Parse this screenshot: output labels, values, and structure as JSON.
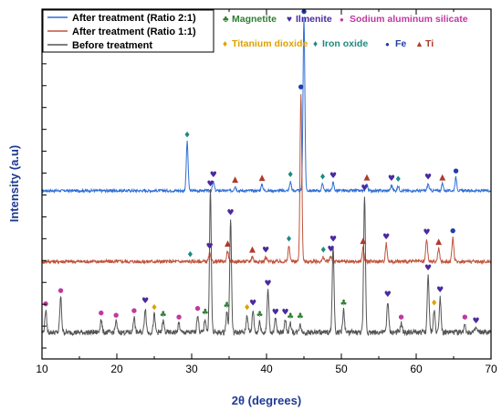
{
  "chart_data": {
    "type": "line",
    "title": "",
    "xlabel": "2θ (degrees)",
    "ylabel": "Intensity (a.u)",
    "xlim": [
      10,
      70
    ],
    "x_ticks": [
      10,
      20,
      30,
      40,
      50,
      60,
      70
    ],
    "y_tick_labels": "none",
    "series": [
      {
        "name": "After treatment (Ratio 2:1)",
        "color": "#2f6fd6",
        "baseline": 3.2,
        "noise": 0.03,
        "peaks": [
          {
            "x": 29.4,
            "h": 1.1
          },
          {
            "x": 32.9,
            "h": 0.2
          },
          {
            "x": 35.8,
            "h": 0.1
          },
          {
            "x": 39.4,
            "h": 0.14
          },
          {
            "x": 43.2,
            "h": 0.2
          },
          {
            "x": 45.0,
            "h": 3.9
          },
          {
            "x": 47.5,
            "h": 0.15
          },
          {
            "x": 48.9,
            "h": 0.18
          },
          {
            "x": 53.4,
            "h": 0.15
          },
          {
            "x": 56.7,
            "h": 0.12
          },
          {
            "x": 57.6,
            "h": 0.1
          },
          {
            "x": 61.6,
            "h": 0.15
          },
          {
            "x": 63.5,
            "h": 0.15
          },
          {
            "x": 65.3,
            "h": 0.3
          }
        ]
      },
      {
        "name": "After treatment (Ratio 1:1)",
        "color": "#c0543c",
        "baseline": 1.6,
        "noise": 0.04,
        "peaks": [
          {
            "x": 32.4,
            "h": 0.18
          },
          {
            "x": 34.8,
            "h": 0.25
          },
          {
            "x": 38.1,
            "h": 0.12
          },
          {
            "x": 39.9,
            "h": 0.1
          },
          {
            "x": 43.0,
            "h": 0.35
          },
          {
            "x": 44.6,
            "h": 3.8
          },
          {
            "x": 47.6,
            "h": 0.1
          },
          {
            "x": 48.6,
            "h": 0.12
          },
          {
            "x": 52.9,
            "h": 0.32
          },
          {
            "x": 56.0,
            "h": 0.4
          },
          {
            "x": 61.4,
            "h": 0.5
          },
          {
            "x": 63.0,
            "h": 0.3
          },
          {
            "x": 64.9,
            "h": 0.55
          }
        ]
      },
      {
        "name": "Before treatment",
        "color": "#555555",
        "baseline": 0.0,
        "noise": 0.06,
        "peaks": [
          {
            "x": 10.5,
            "h": 0.5
          },
          {
            "x": 12.5,
            "h": 0.8
          },
          {
            "x": 17.9,
            "h": 0.3
          },
          {
            "x": 19.9,
            "h": 0.25
          },
          {
            "x": 22.3,
            "h": 0.35
          },
          {
            "x": 23.8,
            "h": 0.55
          },
          {
            "x": 25.0,
            "h": 0.4
          },
          {
            "x": 26.2,
            "h": 0.25
          },
          {
            "x": 28.3,
            "h": 0.2
          },
          {
            "x": 30.8,
            "h": 0.4
          },
          {
            "x": 31.8,
            "h": 0.3
          },
          {
            "x": 32.5,
            "h": 3.2
          },
          {
            "x": 34.7,
            "h": 0.45
          },
          {
            "x": 35.2,
            "h": 2.55
          },
          {
            "x": 37.4,
            "h": 0.4
          },
          {
            "x": 38.2,
            "h": 0.5
          },
          {
            "x": 39.1,
            "h": 0.25
          },
          {
            "x": 40.2,
            "h": 0.95
          },
          {
            "x": 41.2,
            "h": 0.3
          },
          {
            "x": 42.5,
            "h": 0.3
          },
          {
            "x": 43.2,
            "h": 0.2
          },
          {
            "x": 44.5,
            "h": 0.2
          },
          {
            "x": 48.9,
            "h": 1.95
          },
          {
            "x": 50.3,
            "h": 0.5
          },
          {
            "x": 53.1,
            "h": 3.1
          },
          {
            "x": 56.2,
            "h": 0.7
          },
          {
            "x": 58.0,
            "h": 0.2
          },
          {
            "x": 61.6,
            "h": 1.3
          },
          {
            "x": 62.4,
            "h": 0.5
          },
          {
            "x": 63.2,
            "h": 0.8
          },
          {
            "x": 66.5,
            "h": 0.2
          },
          {
            "x": 68.0,
            "h": 0.1
          }
        ]
      }
    ],
    "legend": {
      "placement": "top-left",
      "entries": [
        {
          "label": "After treatment (Ratio 2:1)",
          "color": "#2f6fd6"
        },
        {
          "label": "After treatment (Ratio 1:1)",
          "color": "#c0543c"
        },
        {
          "label": "Before treatment",
          "color": "#555555"
        }
      ]
    },
    "phase_legend": [
      {
        "label": "Magnetite",
        "symbol": "♣",
        "color": "#2e7d32"
      },
      {
        "label": "Ilmenite",
        "symbol": "♥",
        "color": "#4b2a9e"
      },
      {
        "label": "Sodium aluminum silicate",
        "symbol": "●",
        "color": "#c0399f"
      },
      {
        "label": "Titanium dioxide",
        "symbol": "♦",
        "color": "#e0a000"
      },
      {
        "label": "Iron oxide",
        "symbol": "♦",
        "color": "#1d8a80"
      },
      {
        "label": "Fe",
        "symbol": "●",
        "color": "#1f3ea8"
      },
      {
        "label": "Ti",
        "symbol": "▲",
        "color": "#b03a2a"
      }
    ],
    "phase_markers": [
      {
        "series": 0,
        "x": 29.4,
        "phase": "Iron oxide"
      },
      {
        "series": 0,
        "x": 32.9,
        "phase": "Ilmenite"
      },
      {
        "series": 0,
        "x": 35.8,
        "phase": "Ti"
      },
      {
        "series": 0,
        "x": 39.4,
        "phase": "Ti"
      },
      {
        "series": 0,
        "x": 43.2,
        "phase": "Iron oxide"
      },
      {
        "series": 0,
        "x": 45.0,
        "phase": "Fe"
      },
      {
        "series": 0,
        "x": 47.5,
        "phase": "Iron oxide"
      },
      {
        "series": 0,
        "x": 48.9,
        "phase": "Ilmenite"
      },
      {
        "series": 0,
        "x": 53.4,
        "phase": "Ti"
      },
      {
        "series": 0,
        "x": 56.7,
        "phase": "Ilmenite"
      },
      {
        "series": 0,
        "x": 57.6,
        "phase": "Iron oxide"
      },
      {
        "series": 0,
        "x": 61.6,
        "phase": "Ilmenite"
      },
      {
        "series": 0,
        "x": 63.5,
        "phase": "Ti"
      },
      {
        "series": 0,
        "x": 65.3,
        "phase": "Fe"
      },
      {
        "series": 1,
        "x": 29.8,
        "phase": "Iron oxide"
      },
      {
        "series": 1,
        "x": 32.4,
        "phase": "Ilmenite"
      },
      {
        "series": 1,
        "x": 34.8,
        "phase": "Ti"
      },
      {
        "series": 1,
        "x": 38.1,
        "phase": "Ti"
      },
      {
        "series": 1,
        "x": 39.9,
        "phase": "Ilmenite"
      },
      {
        "series": 1,
        "x": 43.0,
        "phase": "Iron oxide"
      },
      {
        "series": 1,
        "x": 44.6,
        "phase": "Fe"
      },
      {
        "series": 1,
        "x": 47.6,
        "phase": "Iron oxide"
      },
      {
        "series": 1,
        "x": 48.6,
        "phase": "Ilmenite"
      },
      {
        "series": 1,
        "x": 52.9,
        "phase": "Ti"
      },
      {
        "series": 1,
        "x": 56.0,
        "phase": "Ilmenite"
      },
      {
        "series": 1,
        "x": 61.4,
        "phase": "Ilmenite"
      },
      {
        "series": 1,
        "x": 63.0,
        "phase": "Ti"
      },
      {
        "series": 1,
        "x": 64.9,
        "phase": "Fe"
      },
      {
        "series": 2,
        "x": 10.5,
        "phase": "Sodium aluminum silicate"
      },
      {
        "series": 2,
        "x": 12.5,
        "phase": "Sodium aluminum silicate"
      },
      {
        "series": 2,
        "x": 17.9,
        "phase": "Sodium aluminum silicate"
      },
      {
        "series": 2,
        "x": 19.9,
        "phase": "Sodium aluminum silicate"
      },
      {
        "series": 2,
        "x": 22.3,
        "phase": "Sodium aluminum silicate"
      },
      {
        "series": 2,
        "x": 23.8,
        "phase": "Ilmenite"
      },
      {
        "series": 2,
        "x": 25.0,
        "phase": "Titanium dioxide"
      },
      {
        "series": 2,
        "x": 26.2,
        "phase": "Magnetite"
      },
      {
        "series": 2,
        "x": 28.3,
        "phase": "Sodium aluminum silicate"
      },
      {
        "series": 2,
        "x": 30.8,
        "phase": "Sodium aluminum silicate"
      },
      {
        "series": 2,
        "x": 31.8,
        "phase": "Magnetite"
      },
      {
        "series": 2,
        "x": 32.5,
        "phase": "Ilmenite"
      },
      {
        "series": 2,
        "x": 34.7,
        "phase": "Magnetite"
      },
      {
        "series": 2,
        "x": 35.2,
        "phase": "Ilmenite"
      },
      {
        "series": 2,
        "x": 37.4,
        "phase": "Titanium dioxide"
      },
      {
        "series": 2,
        "x": 38.2,
        "phase": "Ilmenite"
      },
      {
        "series": 2,
        "x": 39.1,
        "phase": "Magnetite"
      },
      {
        "series": 2,
        "x": 40.2,
        "phase": "Ilmenite"
      },
      {
        "series": 2,
        "x": 41.2,
        "phase": "Ilmenite"
      },
      {
        "series": 2,
        "x": 42.5,
        "phase": "Ilmenite"
      },
      {
        "series": 2,
        "x": 43.2,
        "phase": "Magnetite"
      },
      {
        "series": 2,
        "x": 44.5,
        "phase": "Magnetite"
      },
      {
        "series": 2,
        "x": 48.9,
        "phase": "Ilmenite"
      },
      {
        "series": 2,
        "x": 50.3,
        "phase": "Magnetite"
      },
      {
        "series": 2,
        "x": 53.1,
        "phase": "Ilmenite"
      },
      {
        "series": 2,
        "x": 56.2,
        "phase": "Ilmenite"
      },
      {
        "series": 2,
        "x": 58.0,
        "phase": "Sodium aluminum silicate"
      },
      {
        "series": 2,
        "x": 61.6,
        "phase": "Ilmenite"
      },
      {
        "series": 2,
        "x": 62.4,
        "phase": "Titanium dioxide"
      },
      {
        "series": 2,
        "x": 63.2,
        "phase": "Ilmenite"
      },
      {
        "series": 2,
        "x": 66.5,
        "phase": "Sodium aluminum silicate"
      },
      {
        "series": 2,
        "x": 68.0,
        "phase": "Ilmenite"
      }
    ]
  }
}
